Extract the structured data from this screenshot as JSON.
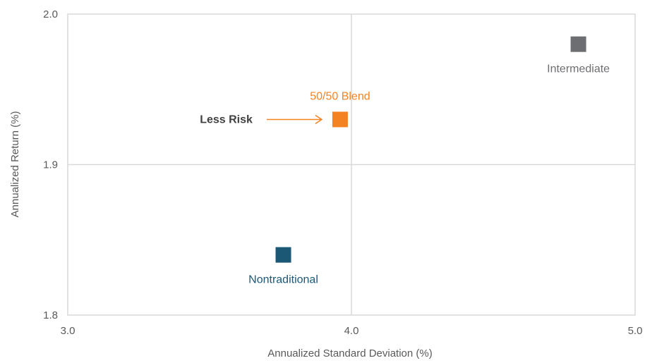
{
  "chart_data": {
    "type": "scatter",
    "title": "",
    "xlabel": "Annualized Standard Deviation (%)",
    "ylabel": "Annualized Return (%)",
    "xlim": [
      3.0,
      5.0
    ],
    "ylim": [
      1.8,
      2.0
    ],
    "x_ticks": [
      3.0,
      4.0,
      5.0
    ],
    "x_tick_labels": [
      "3.0",
      "4.0",
      "5.0"
    ],
    "y_ticks": [
      1.8,
      1.9,
      2.0
    ],
    "y_tick_labels": [
      "1.8",
      "1.9",
      "2.0"
    ],
    "grid": true,
    "marker": "square",
    "points": [
      {
        "label": "Intermediate",
        "x": 4.8,
        "y": 1.98,
        "color": "#6d6e71",
        "label_position": "below"
      },
      {
        "label": "50/50 Blend",
        "x": 3.96,
        "y": 1.93,
        "color": "#f58220",
        "label_position": "above"
      },
      {
        "label": "Nontraditional",
        "x": 3.76,
        "y": 1.84,
        "color": "#1b5876",
        "label_position": "below"
      }
    ],
    "annotations": [
      {
        "text": "Less Risk",
        "color": "#414042",
        "arrow_color": "#f58220",
        "arrow_to_point": "50/50 Blend",
        "arrow_direction": "right"
      }
    ]
  }
}
